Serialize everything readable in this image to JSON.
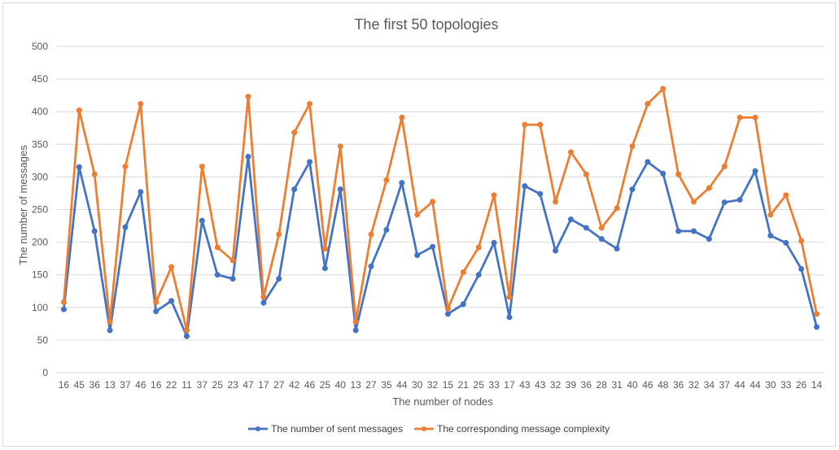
{
  "chart_data": {
    "type": "line",
    "title": "The first 50 topologies",
    "xlabel": "The number of nodes",
    "ylabel": "The number of messages",
    "ylim": [
      0,
      500
    ],
    "yticks": [
      0,
      50,
      100,
      150,
      200,
      250,
      300,
      350,
      400,
      450,
      500
    ],
    "grid": true,
    "legend_position": "bottom",
    "categories": [
      "16",
      "45",
      "36",
      "13",
      "37",
      "46",
      "16",
      "22",
      "11",
      "37",
      "25",
      "23",
      "47",
      "17",
      "27",
      "42",
      "46",
      "25",
      "40",
      "13",
      "27",
      "35",
      "44",
      "30",
      "32",
      "15",
      "21",
      "25",
      "33",
      "17",
      "43",
      "43",
      "32",
      "39",
      "36",
      "28",
      "31",
      "40",
      "46",
      "48",
      "36",
      "32",
      "34",
      "37",
      "44",
      "44",
      "30",
      "33",
      "26",
      "14"
    ],
    "series": [
      {
        "name": "The number of sent messages",
        "color": "#4472c4",
        "values": [
          97,
          315,
          217,
          65,
          223,
          277,
          94,
          110,
          56,
          233,
          150,
          144,
          331,
          107,
          144,
          281,
          323,
          160,
          281,
          65,
          163,
          219,
          291,
          180,
          193,
          90,
          105,
          150,
          199,
          85,
          286,
          274,
          187,
          235,
          222,
          205,
          190,
          281,
          323,
          305,
          217,
          217,
          205,
          261,
          265,
          309,
          210,
          199,
          159,
          70
        ]
      },
      {
        "name": "The corresponding message complexity",
        "color": "#ed7d31",
        "values": [
          108,
          402,
          304,
          78,
          316,
          412,
          108,
          162,
          65,
          316,
          192,
          172,
          423,
          116,
          212,
          368,
          412,
          190,
          347,
          78,
          212,
          295,
          391,
          242,
          262,
          98,
          154,
          192,
          272,
          116,
          380,
          380,
          262,
          338,
          304,
          222,
          252,
          347,
          412,
          435,
          304,
          262,
          283,
          316,
          391,
          391,
          242,
          272,
          202,
          90
        ]
      }
    ]
  }
}
